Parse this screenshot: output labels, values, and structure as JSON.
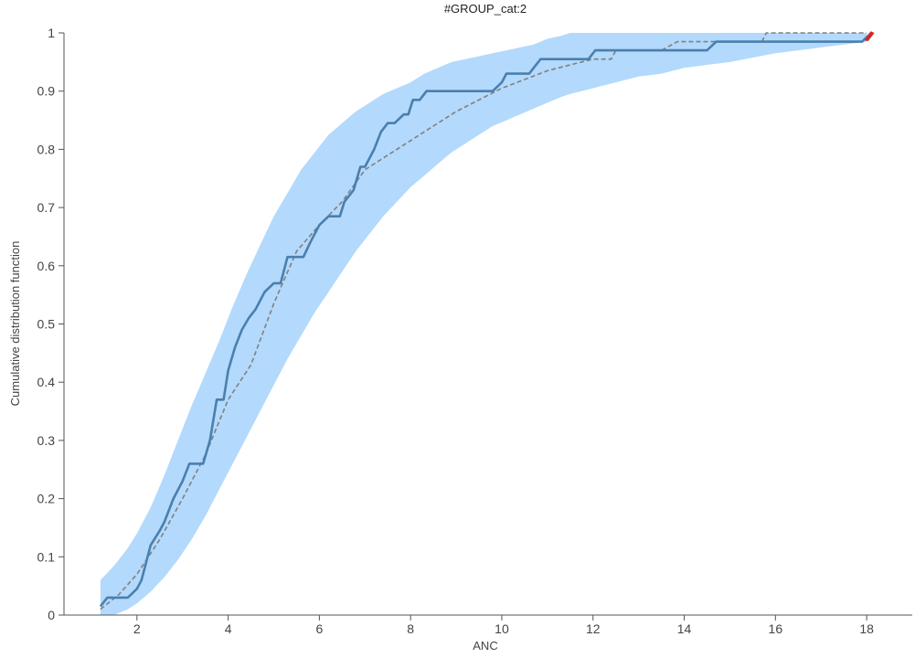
{
  "chart_data": {
    "type": "line",
    "title": "#GROUP_cat:2",
    "xlabel": "ANC",
    "ylabel": "Cumulative distribution function",
    "xlim": [
      0.4,
      19
    ],
    "ylim": [
      0,
      1
    ],
    "x_ticks": [
      2,
      4,
      6,
      8,
      10,
      12,
      14,
      16,
      18
    ],
    "y_ticks": [
      0,
      0.1,
      0.2,
      0.3,
      0.4,
      0.5,
      0.6,
      0.7,
      0.8,
      0.9,
      1
    ],
    "y_tick_labels": [
      "0",
      "0.1",
      "0.2",
      "0.3",
      "0.4",
      "0.5",
      "0.6",
      "0.7",
      "0.8",
      "0.9",
      "1"
    ],
    "grid": false,
    "colors": {
      "band": "#b3d9fc",
      "observed": "#4a7fae",
      "theoretical": "#808080",
      "marker": "#d62728",
      "axis": "#555555"
    },
    "band": {
      "x": [
        1.2,
        1.5,
        1.8,
        2.0,
        2.3,
        2.6,
        2.9,
        3.2,
        3.5,
        3.8,
        4.1,
        4.4,
        4.7,
        5.0,
        5.3,
        5.6,
        5.9,
        6.2,
        6.5,
        6.8,
        7.1,
        7.4,
        7.7,
        8.0,
        8.3,
        8.6,
        8.9,
        9.2,
        9.5,
        9.8,
        10.1,
        10.4,
        10.7,
        11.0,
        11.3,
        11.5,
        12.0,
        12.5,
        13.0,
        13.5,
        14.0,
        14.5,
        15.0,
        16.0,
        17.0,
        18.0
      ],
      "upper": [
        0.06,
        0.085,
        0.115,
        0.14,
        0.185,
        0.24,
        0.3,
        0.36,
        0.415,
        0.47,
        0.53,
        0.585,
        0.635,
        0.685,
        0.725,
        0.765,
        0.795,
        0.825,
        0.845,
        0.865,
        0.88,
        0.895,
        0.905,
        0.915,
        0.93,
        0.94,
        0.95,
        0.955,
        0.96,
        0.965,
        0.97,
        0.975,
        0.98,
        0.99,
        0.995,
        1.0,
        1.0,
        1.0,
        1.0,
        1.0,
        1.0,
        1.0,
        1.0,
        1.0,
        1.0,
        1.0
      ],
      "lower": [
        0.0,
        0.0,
        0.01,
        0.02,
        0.04,
        0.065,
        0.095,
        0.13,
        0.17,
        0.215,
        0.26,
        0.305,
        0.35,
        0.395,
        0.44,
        0.48,
        0.52,
        0.555,
        0.59,
        0.625,
        0.655,
        0.685,
        0.71,
        0.735,
        0.755,
        0.775,
        0.795,
        0.81,
        0.825,
        0.84,
        0.85,
        0.86,
        0.87,
        0.88,
        0.89,
        0.895,
        0.905,
        0.915,
        0.925,
        0.93,
        0.94,
        0.945,
        0.95,
        0.965,
        0.975,
        0.985
      ]
    },
    "series": [
      {
        "style": "solid",
        "x": [
          1.2,
          1.35,
          1.5,
          1.65,
          1.8,
          2.0,
          2.1,
          2.3,
          2.5,
          2.6,
          2.8,
          3.0,
          3.15,
          3.45,
          3.6,
          3.75,
          3.9,
          4.0,
          4.15,
          4.3,
          4.45,
          4.6,
          4.8,
          5.0,
          5.15,
          5.3,
          5.45,
          5.65,
          5.8,
          6.0,
          6.2,
          6.45,
          6.55,
          6.75,
          6.9,
          7.0,
          7.2,
          7.35,
          7.5,
          7.65,
          7.85,
          7.95,
          8.05,
          8.2,
          8.35,
          8.5,
          8.6,
          8.75,
          8.9,
          9.05,
          9.2,
          9.8,
          10.0,
          10.1,
          10.3,
          10.45,
          10.6,
          10.85,
          11.0,
          11.5,
          11.9,
          12.05,
          12.2,
          12.45,
          12.6,
          13.5,
          14.5,
          14.7,
          14.9,
          15.3,
          16.5,
          17.9,
          18.1
        ],
        "y": [
          0.015,
          0.03,
          0.03,
          0.03,
          0.03,
          0.045,
          0.06,
          0.12,
          0.145,
          0.16,
          0.2,
          0.23,
          0.26,
          0.26,
          0.3,
          0.37,
          0.37,
          0.42,
          0.46,
          0.49,
          0.51,
          0.525,
          0.555,
          0.57,
          0.57,
          0.615,
          0.615,
          0.615,
          0.64,
          0.67,
          0.685,
          0.685,
          0.71,
          0.73,
          0.77,
          0.77,
          0.8,
          0.83,
          0.845,
          0.845,
          0.86,
          0.86,
          0.885,
          0.885,
          0.9,
          0.9,
          0.9,
          0.9,
          0.9,
          0.9,
          0.9,
          0.9,
          0.915,
          0.93,
          0.93,
          0.93,
          0.93,
          0.955,
          0.955,
          0.955,
          0.955,
          0.97,
          0.97,
          0.97,
          0.97,
          0.97,
          0.97,
          0.985,
          0.985,
          0.985,
          0.985,
          0.985,
          1.0
        ]
      },
      {
        "style": "dashed",
        "x": [
          1.2,
          1.6,
          2.0,
          2.5,
          3.0,
          3.5,
          4.0,
          4.5,
          5.0,
          5.5,
          6.0,
          6.5,
          7.0,
          7.5,
          8.0,
          8.5,
          9.0,
          9.5,
          10.0,
          10.5,
          11.0,
          11.5,
          12.0,
          12.4,
          12.5,
          13.5,
          13.85,
          14.0,
          15.7,
          15.8,
          17.0,
          18.0
        ],
        "y": [
          0.01,
          0.035,
          0.07,
          0.13,
          0.2,
          0.275,
          0.37,
          0.43,
          0.535,
          0.625,
          0.67,
          0.71,
          0.765,
          0.79,
          0.815,
          0.84,
          0.865,
          0.885,
          0.905,
          0.92,
          0.935,
          0.945,
          0.955,
          0.955,
          0.97,
          0.97,
          0.985,
          0.985,
          0.985,
          1.0,
          1.0,
          1.0
        ]
      }
    ],
    "annotations": [
      {
        "type": "marker",
        "x": 18.05,
        "y": 0.995
      }
    ]
  }
}
